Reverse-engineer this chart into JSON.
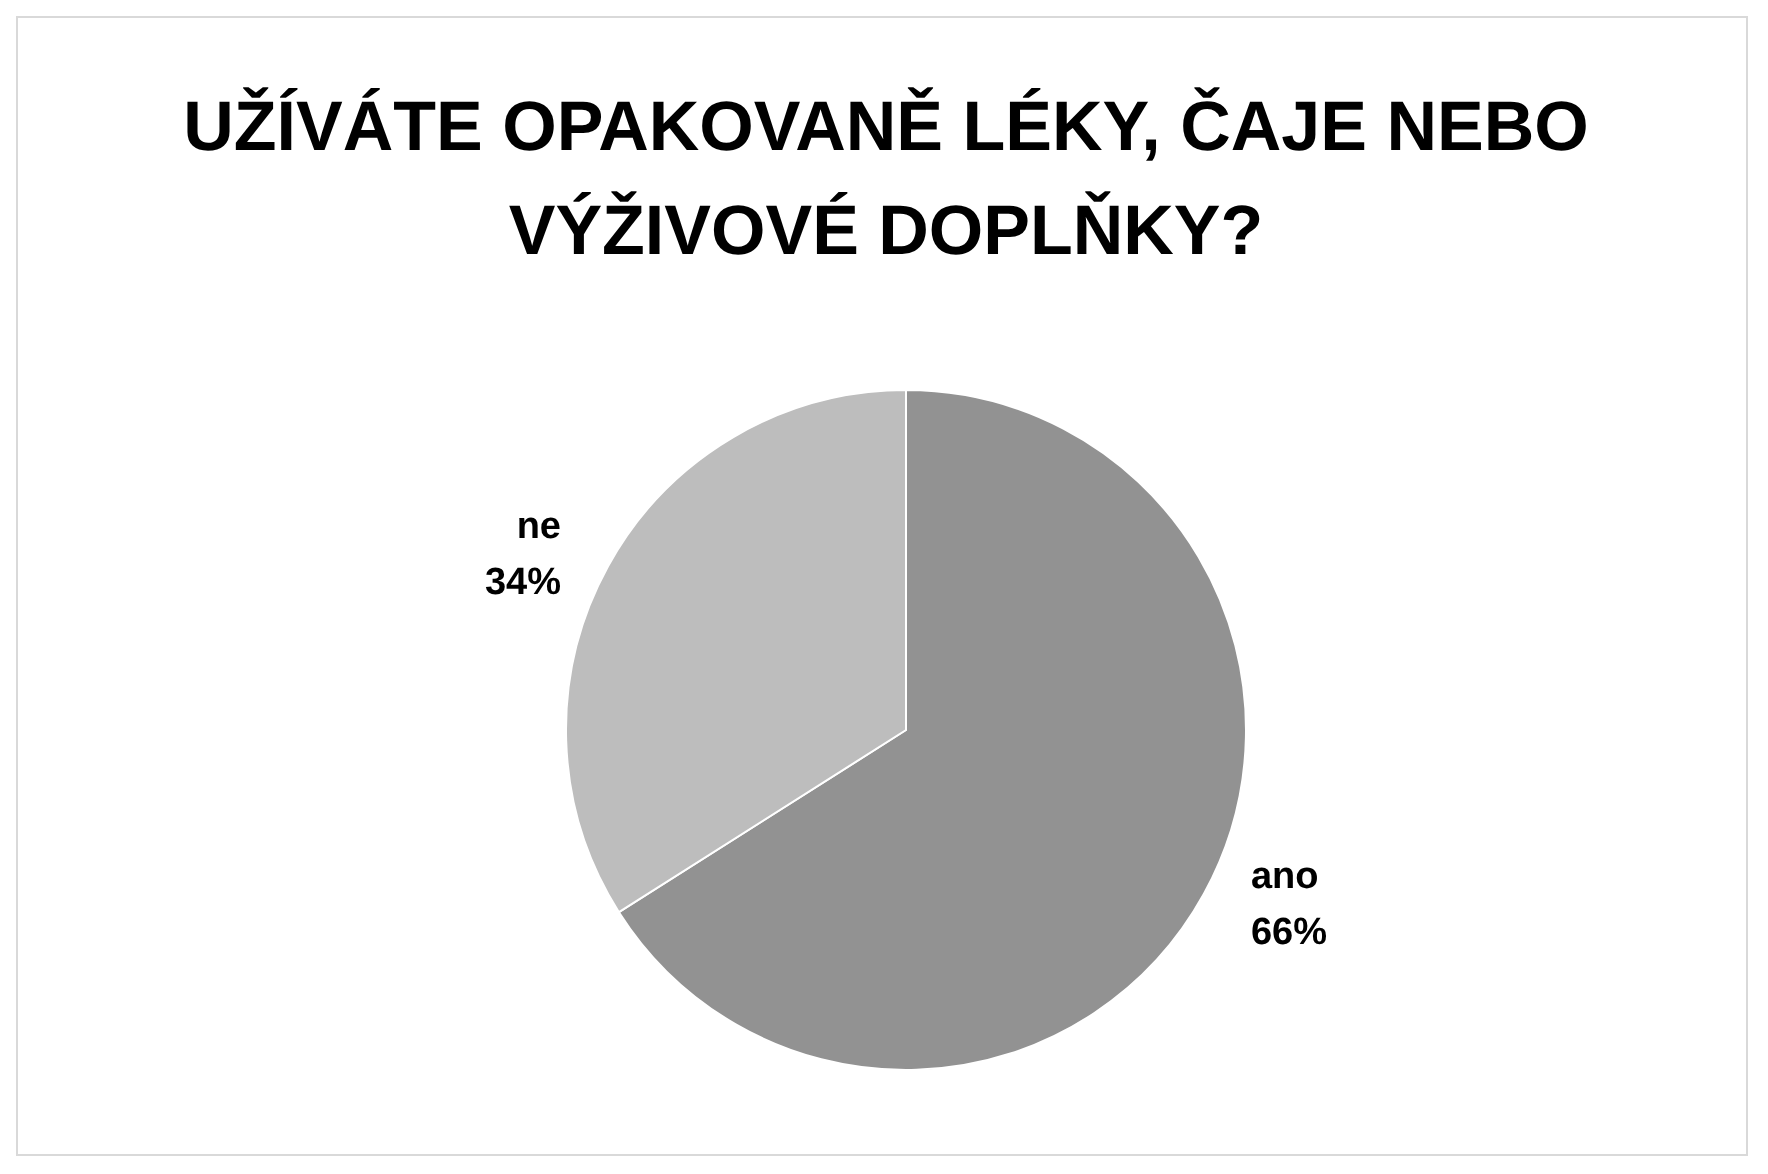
{
  "chart_data": {
    "type": "pie",
    "title": "UŽÍVÁTE OPAKOVANĚ LÉKY, ČAJE NEBO VÝŽIVOVÉ DOPLŇKY?",
    "categories": [
      "ano",
      "ne"
    ],
    "values": [
      66,
      34
    ],
    "colors": [
      "#929292",
      "#bdbdbd"
    ],
    "value_labels": [
      "66%",
      "34%"
    ],
    "legend": false
  }
}
